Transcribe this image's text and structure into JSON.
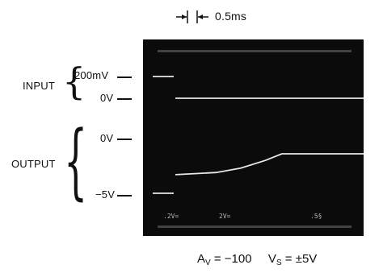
{
  "time_scale": {
    "label": "0.5ms"
  },
  "left_labels": {
    "input": "INPUT",
    "output": "OUTPUT",
    "input_200mv": "200mV",
    "input_0v": "0V",
    "output_0v": "0V",
    "output_neg5v": "−5V"
  },
  "scope_readout": {
    "ch1": ".2V=",
    "ch2": "2V=",
    "time": ".5§"
  },
  "footer": {
    "av_label": "A",
    "av_sub": "V",
    "av_value": "= −100",
    "vs_label": "V",
    "vs_sub": "S",
    "vs_value": "= ±5V"
  },
  "chart_data": {
    "type": "line",
    "series": [
      {
        "values_note": "input step",
        "points": [
          [
            0,
            200
          ],
          [
            0,
            0
          ],
          [
            4.6,
            0
          ]
        ]
      },
      {
        "points": [
          [
            0,
            -5
          ],
          [
            0,
            -3.3
          ],
          [
            1.0,
            -3.1
          ],
          [
            1.6,
            -2.7
          ],
          [
            2.2,
            -2.0
          ],
          [
            2.6,
            -1.4
          ],
          [
            4.6,
            -1.4
          ]
        ]
      }
    ]
  }
}
